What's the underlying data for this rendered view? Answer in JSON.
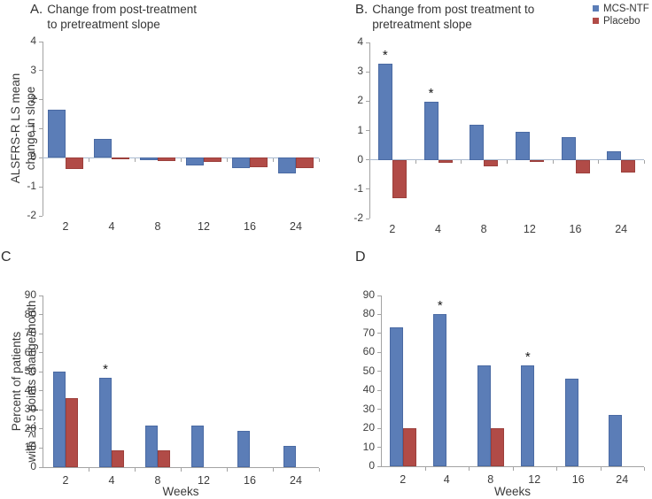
{
  "figure": {
    "background": "#ffffff",
    "text_color": "#3d3d3d",
    "axis_color": "#a3a3a3",
    "zero_line_color": "#a9bad0"
  },
  "legend": {
    "position": "top-right",
    "items": [
      {
        "label": "MCS-NTF",
        "color": "#5b7db7"
      },
      {
        "label": "Placebo",
        "color": "#b14b47"
      }
    ]
  },
  "significance_marker": "*",
  "chart_data": [
    {
      "id": "A",
      "type": "bar",
      "panel_label": "A.",
      "title": "Change from post-treatment to pretreatment slope",
      "title_lines": [
        "Change from post-treatment",
        "to pretreatment slope"
      ],
      "ylabel": "ALSFRS-R LS mean change in slope",
      "ylabel_lines": [
        "ALSFRS-R LS mean",
        "change in slope"
      ],
      "xlabel": "",
      "categories": [
        "2",
        "4",
        "8",
        "12",
        "16",
        "24"
      ],
      "series": [
        {
          "name": "MCS-NTF",
          "values": [
            1.65,
            0.65,
            -0.08,
            -0.25,
            -0.36,
            -0.55
          ]
        },
        {
          "name": "Placebo",
          "values": [
            -0.4,
            -0.03,
            -0.1,
            -0.15,
            -0.32,
            -0.35
          ]
        }
      ],
      "ylim": [
        -2,
        4
      ],
      "yticks": [
        -2,
        -1,
        0,
        1,
        2,
        3,
        4
      ],
      "asterisk_categories": [],
      "grid": false
    },
    {
      "id": "B",
      "type": "bar",
      "panel_label": "B.",
      "title": "Change from post treatment to pretreatment slope",
      "title_lines": [
        "Change from post treatment to",
        "pretreatment slope"
      ],
      "ylabel": "",
      "ylabel_lines": [],
      "xlabel": "",
      "categories": [
        "2",
        "4",
        "8",
        "12",
        "16",
        "24"
      ],
      "series": [
        {
          "name": "MCS-NTF",
          "values": [
            3.28,
            1.98,
            1.2,
            0.95,
            0.78,
            0.28
          ]
        },
        {
          "name": "Placebo",
          "values": [
            -1.3,
            -0.1,
            -0.22,
            -0.04,
            -0.47,
            -0.44
          ]
        }
      ],
      "ylim": [
        -2,
        4
      ],
      "yticks": [
        -2,
        -1,
        0,
        1,
        2,
        3,
        4
      ],
      "asterisk_categories": [
        "2",
        "4"
      ],
      "grid": false
    },
    {
      "id": "C",
      "type": "bar",
      "panel_label": "C",
      "title": "",
      "title_lines": [],
      "ylabel": "Percent of patients with ≥1.5 points change/month",
      "ylabel_lines": [
        "Percent of patients",
        "with ≥1.5 points change/month"
      ],
      "xlabel": "Weeks",
      "categories": [
        "2",
        "4",
        "8",
        "12",
        "16",
        "24"
      ],
      "series": [
        {
          "name": "MCS-NTF",
          "values": [
            50,
            47,
            22,
            22,
            19,
            11
          ]
        },
        {
          "name": "Placebo",
          "values": [
            36,
            9,
            9,
            0,
            0,
            0
          ]
        }
      ],
      "ylim": [
        0,
        90
      ],
      "yticks": [
        0,
        10,
        20,
        30,
        40,
        50,
        60,
        70,
        80,
        90
      ],
      "asterisk_categories": [
        "4"
      ],
      "grid": false
    },
    {
      "id": "D",
      "type": "bar",
      "panel_label": "D",
      "title": "",
      "title_lines": [],
      "ylabel": "",
      "ylabel_lines": [],
      "xlabel": "Weeks",
      "categories": [
        "2",
        "4",
        "8",
        "12",
        "16",
        "24"
      ],
      "series": [
        {
          "name": "MCS-NTF",
          "values": [
            73,
            80,
            53,
            53,
            46,
            27
          ]
        },
        {
          "name": "Placebo",
          "values": [
            20,
            0,
            20,
            0,
            0,
            0
          ]
        }
      ],
      "ylim": [
        0,
        90
      ],
      "yticks": [
        0,
        10,
        20,
        30,
        40,
        50,
        60,
        70,
        80,
        90
      ],
      "asterisk_categories": [
        "4",
        "12"
      ],
      "grid": false
    }
  ]
}
